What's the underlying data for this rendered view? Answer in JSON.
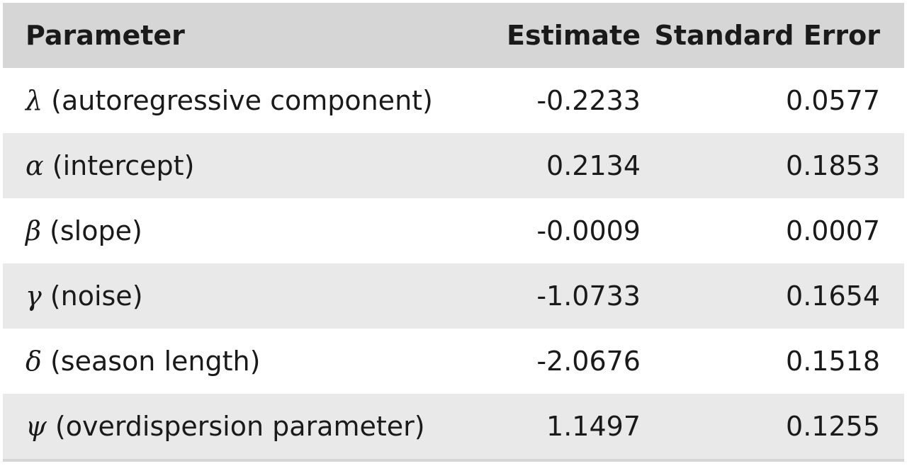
{
  "table": {
    "headers": {
      "parameter": "Parameter",
      "estimate": "Estimate",
      "standard_error": "Standard Error"
    },
    "rows": [
      {
        "symbol": "λ",
        "label": " (autoregressive component)",
        "estimate": "-0.2233",
        "standard_error": "0.0577"
      },
      {
        "symbol": "α",
        "label": " (intercept)",
        "estimate": "0.2134",
        "standard_error": "0.1853"
      },
      {
        "symbol": "β",
        "label": " (slope)",
        "estimate": "-0.0009",
        "standard_error": "0.0007"
      },
      {
        "symbol": "γ",
        "label": " (noise)",
        "estimate": "-1.0733",
        "standard_error": "0.1654"
      },
      {
        "symbol": "δ",
        "label": " (season length)",
        "estimate": "-2.0676",
        "standard_error": "0.1518"
      },
      {
        "symbol": "ψ",
        "label": " (overdispersion parameter)",
        "estimate": "1.1497",
        "standard_error": "0.1255"
      }
    ]
  }
}
